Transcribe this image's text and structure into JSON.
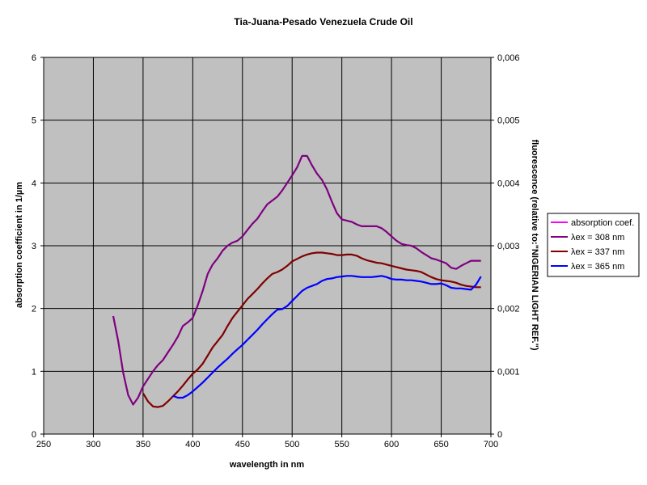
{
  "chart_data": {
    "type": "line",
    "title": "Tia-Juana-Pesado Venezuela Crude Oil",
    "xlabel": "wavelength in nm",
    "ylabel": "absorption coefficient in 1/µm",
    "y2label": "fluorescence (relative to:\"NIGERIAN LIGHT REF.\")",
    "xlim": [
      250,
      700
    ],
    "ylim": [
      0,
      6
    ],
    "y2lim": [
      0,
      0.006
    ],
    "x_ticks": [
      "250",
      "300",
      "350",
      "400",
      "450",
      "500",
      "550",
      "600",
      "650",
      "700"
    ],
    "y_ticks": [
      "0",
      "1",
      "2",
      "3",
      "4",
      "5",
      "6"
    ],
    "y2_ticks": [
      "0",
      "0,001",
      "0,002",
      "0,003",
      "0,004",
      "0,005",
      "0,006"
    ],
    "grid": true,
    "background": "#c0c0c0",
    "legend_position": "right",
    "series": [
      {
        "name": "absorption coef.",
        "axis": "left",
        "color": "#ff00ff",
        "x": [],
        "y": []
      },
      {
        "name": "λex = 308 nm",
        "axis": "right",
        "color": "#800080",
        "x": [
          320,
          325,
          330,
          335,
          340,
          345,
          350,
          355,
          360,
          365,
          370,
          375,
          380,
          385,
          390,
          395,
          400,
          405,
          410,
          415,
          420,
          425,
          430,
          435,
          440,
          445,
          450,
          455,
          460,
          465,
          470,
          475,
          480,
          485,
          490,
          495,
          500,
          505,
          510,
          515,
          520,
          525,
          530,
          535,
          540,
          545,
          550,
          555,
          560,
          565,
          570,
          575,
          580,
          585,
          590,
          595,
          600,
          605,
          610,
          615,
          620,
          625,
          630,
          635,
          640,
          645,
          650,
          655,
          660,
          665,
          670,
          675,
          680,
          685,
          690
        ],
        "y": [
          0.00188,
          0.00148,
          0.00098,
          0.00062,
          0.00047,
          0.00058,
          0.00076,
          0.00088,
          0.001,
          0.0011,
          0.00118,
          0.0013,
          0.00142,
          0.00155,
          0.00172,
          0.00178,
          0.00185,
          0.00205,
          0.00228,
          0.00255,
          0.0027,
          0.0028,
          0.00292,
          0.003,
          0.00305,
          0.00308,
          0.00315,
          0.00325,
          0.00335,
          0.00343,
          0.00355,
          0.00366,
          0.00372,
          0.00378,
          0.00388,
          0.004,
          0.00412,
          0.00425,
          0.00443,
          0.00443,
          0.00428,
          0.00415,
          0.00405,
          0.0039,
          0.0037,
          0.00352,
          0.00342,
          0.0034,
          0.00338,
          0.00334,
          0.00331,
          0.00331,
          0.00331,
          0.00331,
          0.00328,
          0.00322,
          0.00315,
          0.00308,
          0.00303,
          0.00301,
          0.003,
          0.00296,
          0.0029,
          0.00285,
          0.0028,
          0.00278,
          0.00275,
          0.00272,
          0.00265,
          0.00263,
          0.00268,
          0.00272,
          0.00276,
          0.00276,
          0.00276
        ]
      },
      {
        "name": "λex = 337 nm",
        "axis": "right",
        "color": "#800000",
        "x": [
          350,
          355,
          360,
          365,
          370,
          375,
          380,
          385,
          390,
          395,
          400,
          405,
          410,
          415,
          420,
          425,
          430,
          435,
          440,
          445,
          450,
          455,
          460,
          465,
          470,
          475,
          480,
          485,
          490,
          495,
          500,
          505,
          510,
          515,
          520,
          525,
          530,
          535,
          540,
          545,
          550,
          555,
          560,
          565,
          570,
          575,
          580,
          585,
          590,
          595,
          600,
          605,
          610,
          615,
          620,
          625,
          630,
          635,
          640,
          645,
          650,
          655,
          660,
          665,
          670,
          675,
          680,
          685,
          690
        ],
        "y": [
          0.00065,
          0.00052,
          0.00044,
          0.00043,
          0.00045,
          0.00052,
          0.0006,
          0.00068,
          0.00077,
          0.00087,
          0.00096,
          0.00103,
          0.00112,
          0.00125,
          0.00138,
          0.00148,
          0.00158,
          0.00172,
          0.00185,
          0.00195,
          0.00205,
          0.00215,
          0.00223,
          0.00231,
          0.0024,
          0.00248,
          0.00255,
          0.00258,
          0.00262,
          0.00268,
          0.00275,
          0.00279,
          0.00283,
          0.00286,
          0.00288,
          0.00289,
          0.00289,
          0.00288,
          0.00287,
          0.00285,
          0.00285,
          0.00286,
          0.00286,
          0.00284,
          0.0028,
          0.00277,
          0.00275,
          0.00273,
          0.00272,
          0.0027,
          0.00268,
          0.00266,
          0.00264,
          0.00262,
          0.00261,
          0.0026,
          0.00258,
          0.00254,
          0.0025,
          0.00247,
          0.00245,
          0.00244,
          0.00243,
          0.00241,
          0.00238,
          0.00236,
          0.00235,
          0.00234,
          0.00234
        ]
      },
      {
        "name": "λex = 365 nm",
        "axis": "right",
        "color": "#0000ff",
        "x": [
          380,
          385,
          390,
          395,
          400,
          405,
          410,
          415,
          420,
          425,
          430,
          435,
          440,
          445,
          450,
          455,
          460,
          465,
          470,
          475,
          480,
          485,
          490,
          495,
          500,
          505,
          510,
          515,
          520,
          525,
          530,
          535,
          540,
          545,
          550,
          555,
          560,
          565,
          570,
          575,
          580,
          585,
          590,
          595,
          600,
          605,
          610,
          615,
          620,
          625,
          630,
          635,
          640,
          645,
          650,
          655,
          660,
          665,
          670,
          675,
          680,
          685,
          690
        ],
        "y": [
          0.00061,
          0.00058,
          0.00058,
          0.00062,
          0.00068,
          0.00075,
          0.00082,
          0.0009,
          0.00098,
          0.00106,
          0.00113,
          0.0012,
          0.00128,
          0.00135,
          0.00142,
          0.0015,
          0.00158,
          0.00166,
          0.00175,
          0.00183,
          0.00191,
          0.00198,
          0.00199,
          0.00204,
          0.00212,
          0.0022,
          0.00228,
          0.00233,
          0.00236,
          0.00239,
          0.00244,
          0.00247,
          0.00248,
          0.0025,
          0.00251,
          0.00252,
          0.00252,
          0.00251,
          0.0025,
          0.0025,
          0.0025,
          0.00251,
          0.00252,
          0.0025,
          0.00247,
          0.00246,
          0.00246,
          0.00245,
          0.00245,
          0.00244,
          0.00243,
          0.00241,
          0.00239,
          0.00239,
          0.0024,
          0.00237,
          0.00233,
          0.00232,
          0.00232,
          0.00231,
          0.0023,
          0.00238,
          0.00251
        ]
      }
    ]
  }
}
